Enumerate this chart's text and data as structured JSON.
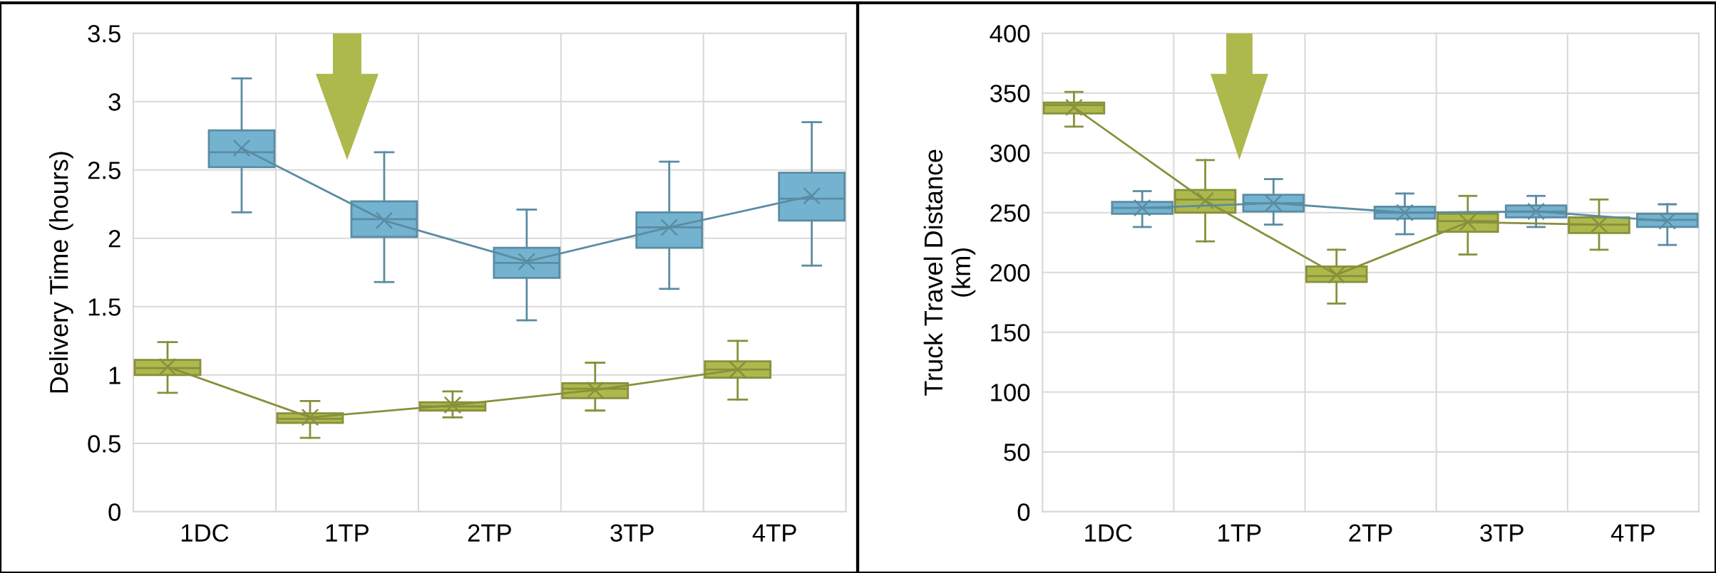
{
  "chart_data": [
    {
      "type": "box",
      "ylabel": "Delivery Time (hours)",
      "categories": [
        "1DC",
        "1TP",
        "2TP",
        "3TP",
        "4TP"
      ],
      "ylim": [
        0,
        3.5
      ],
      "yticks": [
        0,
        0.5,
        1,
        1.5,
        2,
        2.5,
        3,
        3.5
      ],
      "grid": true,
      "marker": "cross",
      "line_style": "solid",
      "series": [
        {
          "color": "#adb94c",
          "boxes": [
            {
              "low": 0.87,
              "q1": 1.0,
              "median": 1.05,
              "q3": 1.11,
              "high": 1.24
            },
            {
              "low": 0.54,
              "q1": 0.65,
              "median": 0.68,
              "q3": 0.72,
              "high": 0.81
            },
            {
              "low": 0.69,
              "q1": 0.74,
              "median": 0.77,
              "q3": 0.8,
              "high": 0.88
            },
            {
              "low": 0.74,
              "q1": 0.83,
              "median": 0.9,
              "q3": 0.94,
              "high": 1.09
            },
            {
              "low": 0.82,
              "q1": 0.98,
              "median": 1.04,
              "q3": 1.1,
              "high": 1.25
            }
          ]
        },
        {
          "color": "#74b3d0",
          "boxes": [
            {
              "low": 2.19,
              "q1": 2.52,
              "median": 2.63,
              "q3": 2.79,
              "high": 3.17
            },
            {
              "low": 1.68,
              "q1": 2.01,
              "median": 2.14,
              "q3": 2.27,
              "high": 2.63
            },
            {
              "low": 1.4,
              "q1": 1.71,
              "median": 1.82,
              "q3": 1.93,
              "high": 2.21
            },
            {
              "low": 1.63,
              "q1": 1.93,
              "median": 2.08,
              "q3": 2.19,
              "high": 2.56
            },
            {
              "low": 1.8,
              "q1": 2.13,
              "median": 2.29,
              "q3": 2.48,
              "high": 2.85
            }
          ]
        },
        {
          "type": "line",
          "color": "#87903b",
          "values": [
            1.06,
            0.69,
            0.78,
            0.89,
            1.04
          ]
        },
        {
          "type": "line",
          "color": "#5a8ca2",
          "values": [
            2.66,
            2.13,
            1.83,
            2.08,
            2.31
          ]
        }
      ]
    },
    {
      "type": "box",
      "ylabel": "Truck Travel Distance\n(km)",
      "categories": [
        "1DC",
        "1TP",
        "2TP",
        "3TP",
        "4TP"
      ],
      "ylim": [
        0,
        400
      ],
      "yticks": [
        0,
        50,
        100,
        150,
        200,
        250,
        300,
        350,
        400
      ],
      "grid": true,
      "marker": "cross",
      "line_style": "solid",
      "series": [
        {
          "color": "#adb94c",
          "boxes": [
            {
              "low": 322,
              "q1": 333,
              "median": 340,
              "q3": 342,
              "high": 351
            },
            {
              "low": 226,
              "q1": 250,
              "median": 261,
              "q3": 269,
              "high": 294
            },
            {
              "low": 174,
              "q1": 192,
              "median": 197,
              "q3": 205,
              "high": 219
            },
            {
              "low": 215,
              "q1": 234,
              "median": 243,
              "q3": 249,
              "high": 264
            },
            {
              "low": 219,
              "q1": 233,
              "median": 240,
              "q3": 246,
              "high": 261
            }
          ]
        },
        {
          "color": "#74b3d0",
          "boxes": [
            {
              "low": 238,
              "q1": 249,
              "median": 254,
              "q3": 259,
              "high": 268
            },
            {
              "low": 240,
              "q1": 251,
              "median": 258,
              "q3": 265,
              "high": 278
            },
            {
              "low": 232,
              "q1": 245,
              "median": 250,
              "q3": 255,
              "high": 266
            },
            {
              "low": 238,
              "q1": 246,
              "median": 251,
              "q3": 256,
              "high": 264
            },
            {
              "low": 223,
              "q1": 238,
              "median": 244,
              "q3": 249,
              "high": 257
            }
          ]
        },
        {
          "type": "line",
          "color": "#87903b",
          "values": [
            338,
            260,
            198,
            242,
            240
          ]
        },
        {
          "type": "line",
          "color": "#5a8ca2",
          "values": [
            254,
            258,
            250,
            251,
            243
          ]
        }
      ]
    }
  ]
}
